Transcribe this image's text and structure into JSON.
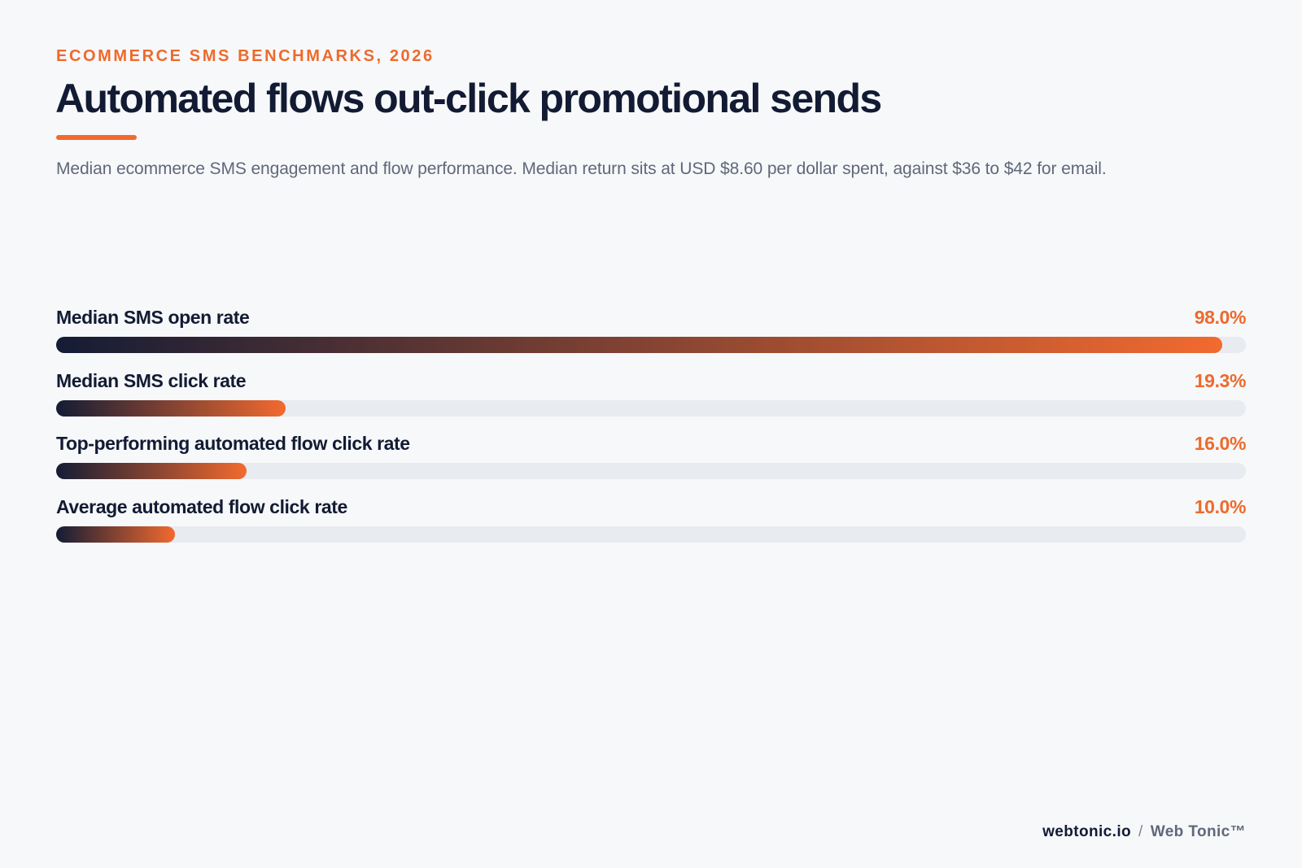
{
  "header": {
    "eyebrow": "ECOMMERCE SMS BENCHMARKS, 2026",
    "title": "Automated flows out-click promotional sends",
    "subtitle": "Median ecommerce SMS engagement and flow performance. Median return sits at USD $8.60 per dollar spent, against $36 to $42 for email."
  },
  "footer": {
    "site": "webtonic.io",
    "separator": "/",
    "brand": "Web Tonic™"
  },
  "colors": {
    "accent": "#ee6a2c",
    "navy": "#121b33",
    "track": "#e8ebef",
    "background": "#f7f8fa"
  },
  "chart_data": {
    "type": "bar",
    "orientation": "horizontal",
    "title": "Automated flows out-click promotional sends",
    "xlim": [
      0,
      100
    ],
    "grid": false,
    "categories": [
      "Median SMS open rate",
      "Median SMS click rate",
      "Top-performing automated flow click rate",
      "Average automated flow click rate"
    ],
    "values": [
      98.0,
      19.3,
      16.0,
      10.0
    ],
    "value_labels": [
      "98.0%",
      "19.3%",
      "16.0%",
      "10.0%"
    ],
    "unit": "%"
  }
}
